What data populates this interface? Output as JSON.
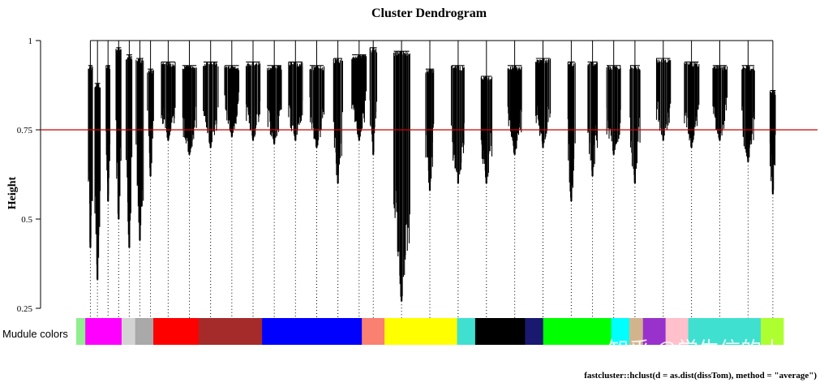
{
  "chart_data": {
    "type": "dendrogram",
    "title": "Cluster Dendrogram",
    "ylabel": "Height",
    "ylim": [
      0.25,
      1
    ],
    "yticks": [
      {
        "value": 1,
        "label": "1"
      },
      {
        "value": 0.75,
        "label": "0.75"
      },
      {
        "value": 0.5,
        "label": "0.5"
      },
      {
        "value": 0.25,
        "label": "0.25"
      }
    ],
    "cut_height": 0.75,
    "cut_line_color": "#cc0000",
    "color_bar_label": "Mudule colors",
    "footer": "fastcluster::hclust(d = as.dist(dissTom), method = \"average\")",
    "watermark": "知乎 @学生信的大叔",
    "modules": [
      {
        "color": "#90ee90",
        "width": 1
      },
      {
        "color": "#ff00ff",
        "width": 4
      },
      {
        "color": "#d3d3d3",
        "width": 1.5
      },
      {
        "color": "#a9a9a9",
        "width": 2
      },
      {
        "color": "#ff0000",
        "width": 5
      },
      {
        "color": "#a52a2a",
        "width": 7
      },
      {
        "color": "#0000ff",
        "width": 11
      },
      {
        "color": "#fa8072",
        "width": 2.5
      },
      {
        "color": "#ffff00",
        "width": 8
      },
      {
        "color": "#40e0d0",
        "width": 2
      },
      {
        "color": "#000000",
        "width": 5.5
      },
      {
        "color": "#191970",
        "width": 2
      },
      {
        "color": "#00ff00",
        "width": 7.5
      },
      {
        "color": "#00ffff",
        "width": 2
      },
      {
        "color": "#d2b48c",
        "width": 1.5
      },
      {
        "color": "#9932cc",
        "width": 2.5
      },
      {
        "color": "#ffc0cb",
        "width": 2.5
      },
      {
        "color": "#40e0d0",
        "width": 8
      },
      {
        "color": "#adff2f",
        "width": 2.5
      }
    ],
    "branches": [
      {
        "pos": 0.02,
        "top": 0.93,
        "bottom": 0.42,
        "spread": 0.006
      },
      {
        "pos": 0.03,
        "top": 0.88,
        "bottom": 0.33,
        "spread": 0.008
      },
      {
        "pos": 0.045,
        "top": 0.93,
        "bottom": 0.55,
        "spread": 0.006
      },
      {
        "pos": 0.06,
        "top": 0.98,
        "bottom": 0.5,
        "spread": 0.007
      },
      {
        "pos": 0.075,
        "top": 0.96,
        "bottom": 0.42,
        "spread": 0.008
      },
      {
        "pos": 0.09,
        "top": 0.95,
        "bottom": 0.44,
        "spread": 0.01
      },
      {
        "pos": 0.105,
        "top": 0.92,
        "bottom": 0.62,
        "spread": 0.008
      },
      {
        "pos": 0.13,
        "top": 0.94,
        "bottom": 0.72,
        "spread": 0.02
      },
      {
        "pos": 0.16,
        "top": 0.93,
        "bottom": 0.68,
        "spread": 0.02
      },
      {
        "pos": 0.19,
        "top": 0.94,
        "bottom": 0.7,
        "spread": 0.02
      },
      {
        "pos": 0.22,
        "top": 0.93,
        "bottom": 0.73,
        "spread": 0.02
      },
      {
        "pos": 0.25,
        "top": 0.94,
        "bottom": 0.72,
        "spread": 0.02
      },
      {
        "pos": 0.28,
        "top": 0.93,
        "bottom": 0.71,
        "spread": 0.02
      },
      {
        "pos": 0.31,
        "top": 0.94,
        "bottom": 0.72,
        "spread": 0.02
      },
      {
        "pos": 0.34,
        "top": 0.93,
        "bottom": 0.7,
        "spread": 0.02
      },
      {
        "pos": 0.37,
        "top": 0.95,
        "bottom": 0.6,
        "spread": 0.012
      },
      {
        "pos": 0.4,
        "top": 0.96,
        "bottom": 0.72,
        "spread": 0.02
      },
      {
        "pos": 0.42,
        "top": 0.98,
        "bottom": 0.68,
        "spread": 0.01
      },
      {
        "pos": 0.46,
        "top": 0.97,
        "bottom": 0.27,
        "spread": 0.022
      },
      {
        "pos": 0.5,
        "top": 0.92,
        "bottom": 0.58,
        "spread": 0.012
      },
      {
        "pos": 0.54,
        "top": 0.93,
        "bottom": 0.6,
        "spread": 0.018
      },
      {
        "pos": 0.58,
        "top": 0.9,
        "bottom": 0.6,
        "spread": 0.015
      },
      {
        "pos": 0.62,
        "top": 0.93,
        "bottom": 0.68,
        "spread": 0.02
      },
      {
        "pos": 0.66,
        "top": 0.95,
        "bottom": 0.7,
        "spread": 0.02
      },
      {
        "pos": 0.7,
        "top": 0.94,
        "bottom": 0.55,
        "spread": 0.01
      },
      {
        "pos": 0.73,
        "top": 0.94,
        "bottom": 0.62,
        "spread": 0.014
      },
      {
        "pos": 0.76,
        "top": 0.93,
        "bottom": 0.68,
        "spread": 0.02
      },
      {
        "pos": 0.79,
        "top": 0.93,
        "bottom": 0.6,
        "spread": 0.014
      },
      {
        "pos": 0.83,
        "top": 0.95,
        "bottom": 0.72,
        "spread": 0.02
      },
      {
        "pos": 0.87,
        "top": 0.94,
        "bottom": 0.7,
        "spread": 0.02
      },
      {
        "pos": 0.91,
        "top": 0.93,
        "bottom": 0.72,
        "spread": 0.02
      },
      {
        "pos": 0.95,
        "top": 0.93,
        "bottom": 0.66,
        "spread": 0.018
      },
      {
        "pos": 0.985,
        "top": 0.86,
        "bottom": 0.57,
        "spread": 0.008
      }
    ],
    "grid": false,
    "legend": "none"
  }
}
